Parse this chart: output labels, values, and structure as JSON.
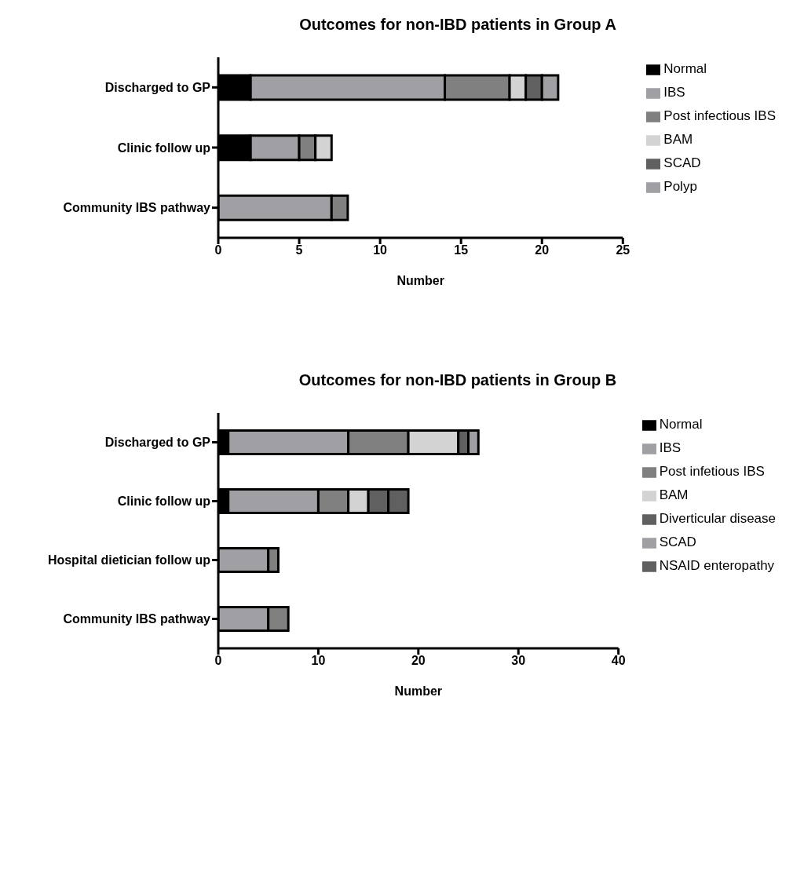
{
  "chart_data": [
    {
      "type": "bar",
      "orientation": "horizontal",
      "stacked": true,
      "title": "Outcomes for non-IBD patients in Group A",
      "xlabel": "Number",
      "categories": [
        "Discharged to GP",
        "Clinic follow up",
        "Community IBS pathway"
      ],
      "xlim": [
        0,
        25
      ],
      "xticks": [
        0,
        5,
        10,
        15,
        20,
        25
      ],
      "legend": "right",
      "grid": false,
      "series": [
        {
          "name": "Normal",
          "color": "#000000",
          "values": [
            2,
            2,
            0
          ]
        },
        {
          "name": "IBS",
          "color": "#a0a0a4",
          "values": [
            12,
            3,
            7
          ]
        },
        {
          "name": "Post infectious IBS",
          "color": "#808080",
          "values": [
            4,
            1,
            1
          ]
        },
        {
          "name": "BAM",
          "color": "#d3d3d3",
          "values": [
            1,
            1,
            0
          ]
        },
        {
          "name": "SCAD",
          "color": "#606060",
          "values": [
            1,
            0,
            0
          ]
        },
        {
          "name": "Polyp",
          "color": "#a0a0a4",
          "values": [
            1,
            0,
            0
          ]
        }
      ]
    },
    {
      "type": "bar",
      "orientation": "horizontal",
      "stacked": true,
      "title": "Outcomes for non-IBD patients in Group B",
      "xlabel": "Number",
      "categories": [
        "Discharged to GP",
        "Clinic follow up",
        "Hospital dietician follow up",
        "Community IBS pathway"
      ],
      "xlim": [
        0,
        40
      ],
      "xticks": [
        0,
        10,
        20,
        30,
        40
      ],
      "legend": "right",
      "grid": false,
      "series": [
        {
          "name": "Normal",
          "color": "#000000",
          "values": [
            1,
            1,
            0,
            0
          ]
        },
        {
          "name": "IBS",
          "color": "#a0a0a4",
          "values": [
            12,
            9,
            5,
            5
          ]
        },
        {
          "name": "Post infetious IBS",
          "color": "#808080",
          "values": [
            6,
            3,
            1,
            2
          ]
        },
        {
          "name": "BAM",
          "color": "#d3d3d3",
          "values": [
            5,
            2,
            0,
            0
          ]
        },
        {
          "name": "Diverticular disease",
          "color": "#606060",
          "values": [
            1,
            2,
            0,
            0
          ]
        },
        {
          "name": "SCAD",
          "color": "#a0a0a4",
          "values": [
            1,
            0,
            0,
            0
          ]
        },
        {
          "name": "NSAID enteropathy",
          "color": "#606060",
          "values": [
            0,
            2,
            0,
            0
          ]
        }
      ]
    }
  ]
}
